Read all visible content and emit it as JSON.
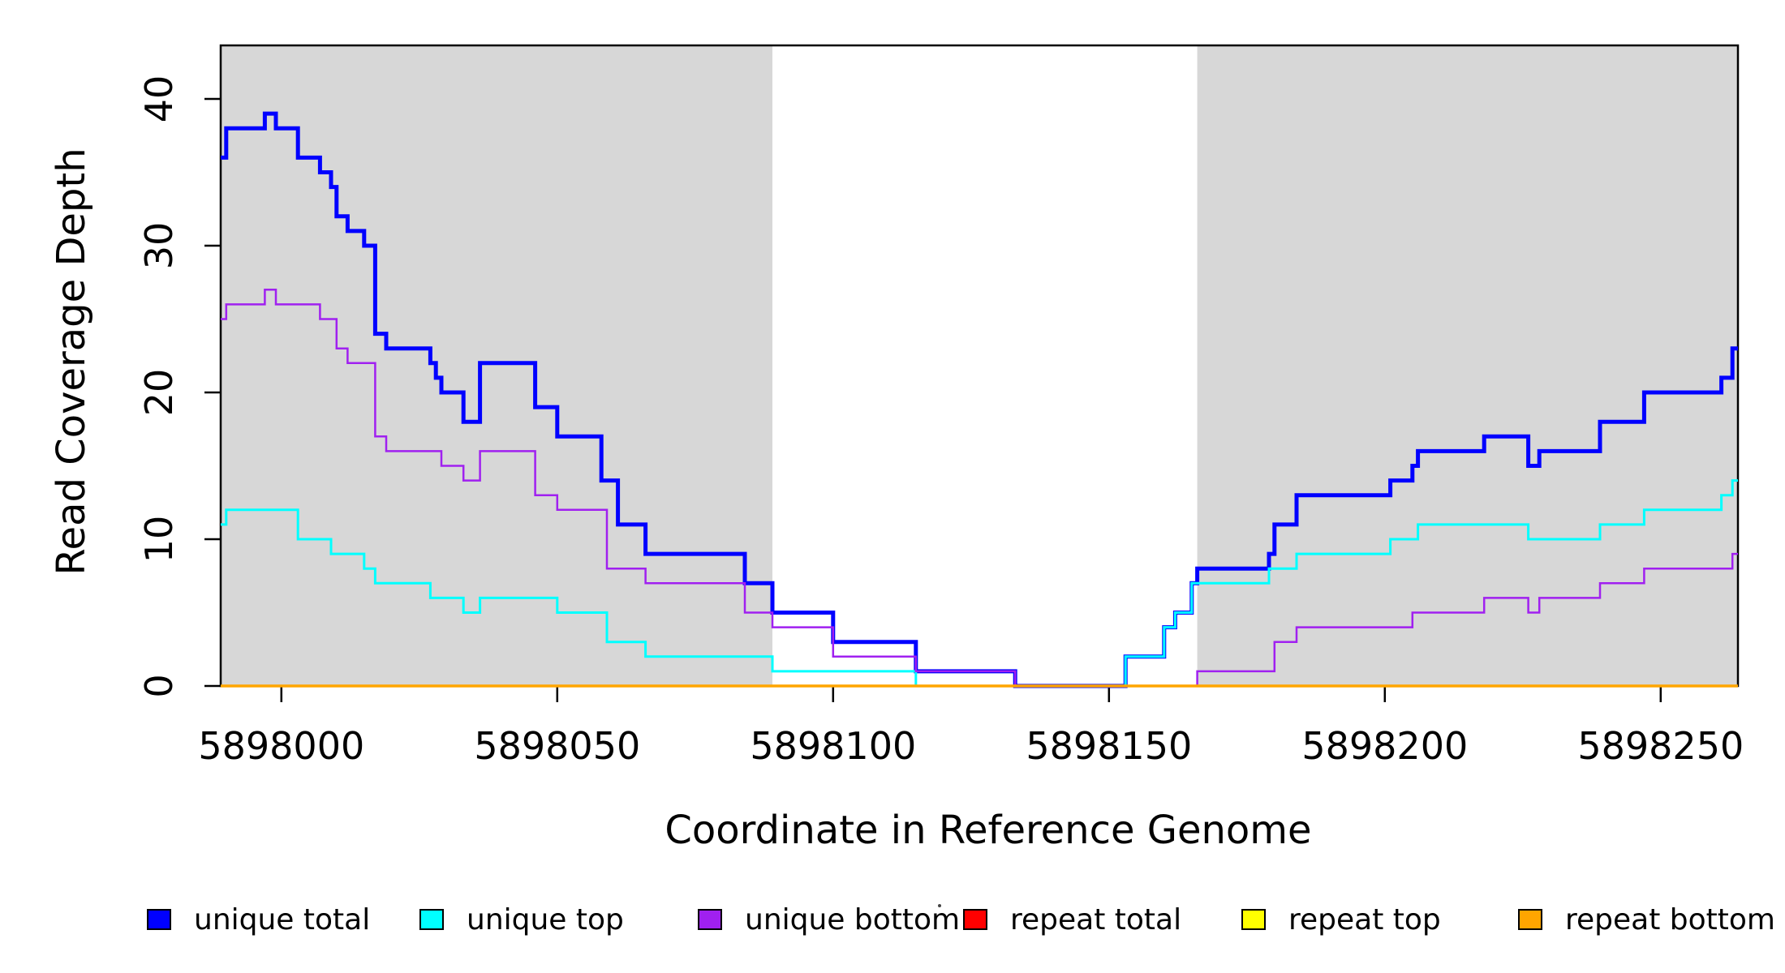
{
  "y_axis": {
    "label": "Read Coverage Depth",
    "ticks": [
      0,
      10,
      20,
      30,
      40
    ]
  },
  "x_axis": {
    "label": "Coordinate in Reference Genome",
    "ticks": [
      5898000,
      5898050,
      5898100,
      5898150,
      5898200,
      5898250
    ]
  },
  "legend": {
    "items": [
      {
        "label": "unique total",
        "color": "#0000ff"
      },
      {
        "label": "unique top",
        "color": "#00ffff"
      },
      {
        "label": "unique bottom",
        "color": "#a020f0"
      },
      {
        "label": "repeat total",
        "color": "#ff0000"
      },
      {
        "label": "repeat top",
        "color": "#ffff00"
      },
      {
        "label": "repeat bottom",
        "color": "#ffa500"
      }
    ]
  },
  "chart_data": {
    "type": "line",
    "subtype": "step-post",
    "xlabel": "Coordinate in Reference Genome",
    "ylabel": "Read Coverage Depth",
    "x_range": [
      5897989,
      5898264
    ],
    "y_range": [
      0,
      44
    ],
    "grid": false,
    "legend_position": "bottom-horizontal",
    "shaded_regions": [
      {
        "name": "unique-region-left",
        "start": 5897989,
        "end": 5898089,
        "color": "#d7d7d7"
      },
      {
        "name": "unique-region-right",
        "start": 5898166,
        "end": 5898264,
        "color": "#d7d7d7"
      }
    ],
    "series": [
      {
        "name": "unique total",
        "color": "#0000ff",
        "width": 5,
        "steps": [
          [
            5897989,
            36
          ],
          [
            5897990,
            38
          ],
          [
            5897997,
            39
          ],
          [
            5897999,
            38
          ],
          [
            5898003,
            36
          ],
          [
            5898007,
            35
          ],
          [
            5898009,
            34
          ],
          [
            5898010,
            32
          ],
          [
            5898012,
            31
          ],
          [
            5898015,
            30
          ],
          [
            5898017,
            24
          ],
          [
            5898019,
            23
          ],
          [
            5898027,
            22
          ],
          [
            5898028,
            21
          ],
          [
            5898029,
            20
          ],
          [
            5898033,
            18
          ],
          [
            5898036,
            22
          ],
          [
            5898046,
            19
          ],
          [
            5898050,
            17
          ],
          [
            5898058,
            14
          ],
          [
            5898061,
            11
          ],
          [
            5898066,
            9
          ],
          [
            5898084,
            7
          ],
          [
            5898089,
            5
          ],
          [
            5898100,
            3
          ],
          [
            5898115,
            1
          ],
          [
            5898133,
            0
          ],
          [
            5898153,
            2
          ],
          [
            5898160,
            4
          ],
          [
            5898162,
            5
          ],
          [
            5898165,
            7
          ],
          [
            5898166,
            8
          ],
          [
            5898179,
            9
          ],
          [
            5898180,
            11
          ],
          [
            5898184,
            13
          ],
          [
            5898201,
            14
          ],
          [
            5898205,
            15
          ],
          [
            5898206,
            16
          ],
          [
            5898218,
            17
          ],
          [
            5898226,
            15
          ],
          [
            5898228,
            16
          ],
          [
            5898239,
            18
          ],
          [
            5898247,
            20
          ],
          [
            5898261,
            21
          ],
          [
            5898263,
            23
          ]
        ]
      },
      {
        "name": "unique top",
        "color": "#00ffff",
        "width": 3,
        "steps": [
          [
            5897989,
            11
          ],
          [
            5897990,
            12
          ],
          [
            5898003,
            10
          ],
          [
            5898009,
            9
          ],
          [
            5898015,
            8
          ],
          [
            5898017,
            7
          ],
          [
            5898027,
            6
          ],
          [
            5898033,
            5
          ],
          [
            5898036,
            6
          ],
          [
            5898050,
            5
          ],
          [
            5898059,
            3
          ],
          [
            5898066,
            2
          ],
          [
            5898089,
            1
          ],
          [
            5898115,
            0
          ],
          [
            5898153,
            2
          ],
          [
            5898160,
            4
          ],
          [
            5898162,
            5
          ],
          [
            5898165,
            7
          ],
          [
            5898179,
            8
          ],
          [
            5898184,
            9
          ],
          [
            5898201,
            10
          ],
          [
            5898206,
            11
          ],
          [
            5898226,
            10
          ],
          [
            5898239,
            11
          ],
          [
            5898247,
            12
          ],
          [
            5898261,
            13
          ],
          [
            5898263,
            14
          ]
        ]
      },
      {
        "name": "unique bottom",
        "color": "#a020f0",
        "width": 2.5,
        "steps": [
          [
            5897989,
            25
          ],
          [
            5897990,
            26
          ],
          [
            5897997,
            27
          ],
          [
            5897999,
            26
          ],
          [
            5898007,
            25
          ],
          [
            5898010,
            23
          ],
          [
            5898012,
            22
          ],
          [
            5898017,
            17
          ],
          [
            5898019,
            16
          ],
          [
            5898029,
            15
          ],
          [
            5898033,
            14
          ],
          [
            5898036,
            16
          ],
          [
            5898046,
            13
          ],
          [
            5898050,
            12
          ],
          [
            5898059,
            8
          ],
          [
            5898066,
            7
          ],
          [
            5898084,
            5
          ],
          [
            5898089,
            4
          ],
          [
            5898100,
            2
          ],
          [
            5898115,
            1
          ],
          [
            5898133,
            0
          ],
          [
            5898166,
            1
          ],
          [
            5898180,
            3
          ],
          [
            5898184,
            4
          ],
          [
            5898205,
            5
          ],
          [
            5898218,
            6
          ],
          [
            5898226,
            5
          ],
          [
            5898228,
            6
          ],
          [
            5898239,
            7
          ],
          [
            5898247,
            8
          ],
          [
            5898263,
            9
          ]
        ]
      },
      {
        "name": "repeat total",
        "color": "#ff0000",
        "width": 2.5,
        "steps": [
          [
            5897989,
            0
          ]
        ]
      },
      {
        "name": "repeat top",
        "color": "#ffff00",
        "width": 2.5,
        "steps": [
          [
            5897989,
            0
          ]
        ]
      },
      {
        "name": "repeat bottom",
        "color": "#ffa500",
        "width": 3.5,
        "steps": [
          [
            5897989,
            0
          ]
        ]
      }
    ]
  }
}
